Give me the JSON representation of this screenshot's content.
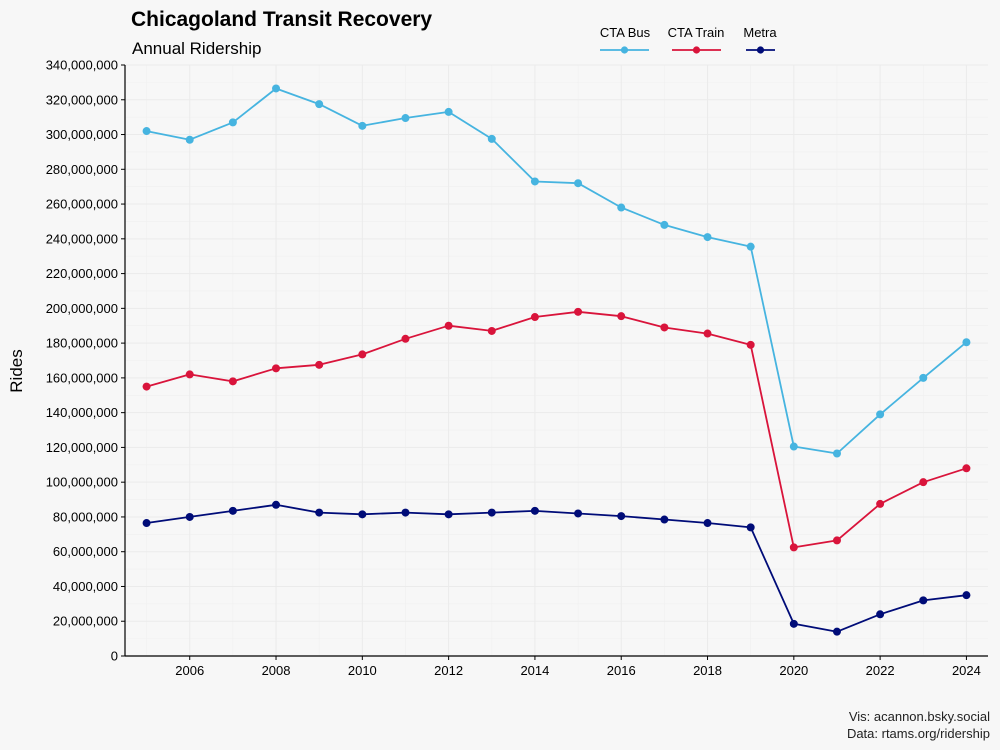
{
  "chart_data": {
    "type": "line",
    "title": "Chicagoland Transit Recovery",
    "subtitle": "Annual Ridership",
    "xlabel": "",
    "ylabel": "Rides",
    "ylim": [
      0,
      340000000
    ],
    "xlim": [
      2004.5,
      2024.5
    ],
    "x": [
      2005,
      2006,
      2007,
      2008,
      2009,
      2010,
      2011,
      2012,
      2013,
      2014,
      2015,
      2016,
      2017,
      2018,
      2019,
      2020,
      2021,
      2022,
      2023,
      2024
    ],
    "x_ticks": [
      2006,
      2008,
      2010,
      2012,
      2014,
      2016,
      2018,
      2020,
      2022,
      2024
    ],
    "y_ticks": [
      0,
      20000000,
      40000000,
      60000000,
      80000000,
      100000000,
      120000000,
      140000000,
      160000000,
      180000000,
      200000000,
      220000000,
      240000000,
      260000000,
      280000000,
      300000000,
      320000000,
      340000000
    ],
    "y_tick_labels": [
      "0",
      "20,000,000",
      "40,000,000",
      "60,000,000",
      "80,000,000",
      "100,000,000",
      "120,000,000",
      "140,000,000",
      "160,000,000",
      "180,000,000",
      "200,000,000",
      "220,000,000",
      "240,000,000",
      "260,000,000",
      "280,000,000",
      "300,000,000",
      "320,000,000",
      "340,000,000"
    ],
    "grid": true,
    "legend_position": "top-right",
    "series": [
      {
        "name": "CTA Bus",
        "color": "#46b4e0",
        "values": [
          302000000,
          297000000,
          307000000,
          326500000,
          317500000,
          305000000,
          309500000,
          313000000,
          297500000,
          273000000,
          272000000,
          258000000,
          248000000,
          241000000,
          235500000,
          120500000,
          116500000,
          139000000,
          160000000,
          180500000
        ]
      },
      {
        "name": "CTA Train",
        "color": "#d9143b",
        "values": [
          155000000,
          162000000,
          158000000,
          165500000,
          167500000,
          173500000,
          182500000,
          190000000,
          187000000,
          195000000,
          198000000,
          195500000,
          189000000,
          185500000,
          179000000,
          62500000,
          66500000,
          87500000,
          100000000,
          108000000
        ]
      },
      {
        "name": "Metra",
        "color": "#000c78",
        "values": [
          76500000,
          80000000,
          83500000,
          87000000,
          82500000,
          81500000,
          82500000,
          81500000,
          82500000,
          83500000,
          82000000,
          80500000,
          78500000,
          76500000,
          74000000,
          18500000,
          14000000,
          24000000,
          32000000,
          35000000
        ]
      }
    ],
    "caption_lines": [
      "Vis: acannon.bsky.social",
      "Data: rtams.org/ridership"
    ]
  }
}
